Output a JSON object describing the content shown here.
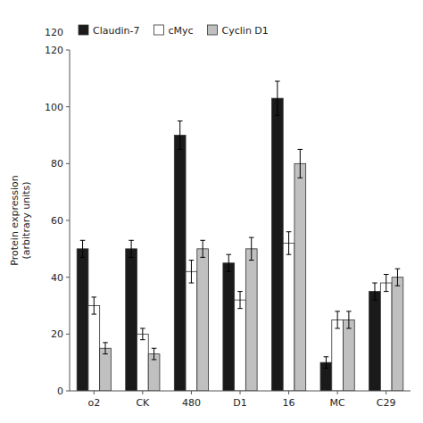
{
  "chart_data": {
    "type": "bar",
    "categories": [
      "o2",
      "CK",
      "480",
      "D1",
      "16",
      "MC",
      "C29"
    ],
    "series": [
      {
        "name": "Claudin-7",
        "color": "#1a1a1a",
        "values": [
          50,
          50,
          90,
          45,
          103,
          10,
          35
        ],
        "errors": [
          3,
          3,
          5,
          3,
          6,
          2,
          3
        ]
      },
      {
        "name": "cMyc",
        "color": "#ffffff",
        "values": [
          30,
          20,
          42,
          32,
          52,
          25,
          38
        ],
        "errors": [
          3,
          2,
          4,
          3,
          4,
          3,
          3
        ]
      },
      {
        "name": "Cyclin D1",
        "color": "#c0c0c0",
        "values": [
          15,
          13,
          50,
          50,
          80,
          25,
          40
        ],
        "errors": [
          2,
          2,
          3,
          4,
          5,
          3,
          3
        ]
      }
    ],
    "y_label": "Protein expression\n(arbitrary units)",
    "annotations": [
      "120"
    ],
    "ylim": [
      0,
      120
    ],
    "yticks": [
      0,
      20,
      40,
      60,
      80,
      100,
      120
    ],
    "legend": "upper left",
    "grid": false
  }
}
